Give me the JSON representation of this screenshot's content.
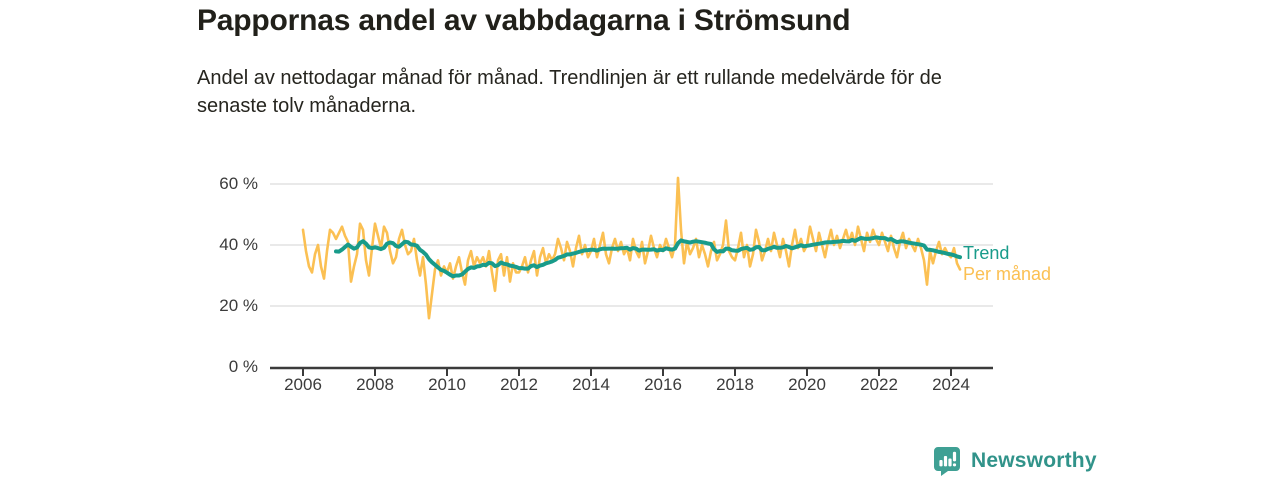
{
  "header": {
    "title": "Pappornas andel av vabbdagarna i Strömsund",
    "subtitle_line1": "Andel av nettodagar månad för månad. Trendlinjen är ett rullande medelvärde för de",
    "subtitle_line2": "senaste tolv månaderna."
  },
  "chart_data": {
    "type": "line",
    "title": "Pappornas andel av vabbdagarna i Strömsund",
    "x_start": "2006-01",
    "x_end": "2024-04",
    "ylim": [
      0,
      65
    ],
    "y_ticks": [
      "0 %",
      "20 %",
      "40 %",
      "60 %"
    ],
    "y_tick_values": [
      0,
      20,
      40,
      60
    ],
    "x_ticks": [
      "2006",
      "2008",
      "2010",
      "2012",
      "2014",
      "2016",
      "2018",
      "2020",
      "2022",
      "2024"
    ],
    "x_tick_values": [
      2006,
      2008,
      2010,
      2012,
      2014,
      2016,
      2018,
      2020,
      2022,
      2024
    ],
    "grid": "horizontal",
    "legend_position": "right-of-line-end",
    "series": [
      {
        "name": "Per månad",
        "color": "#FBC053",
        "unit": "%",
        "values": [
          45,
          38,
          33,
          31,
          37,
          40,
          33,
          29,
          38,
          45,
          44,
          42,
          44,
          46,
          43,
          41,
          28,
          33,
          37,
          47,
          45,
          35,
          30,
          39,
          47,
          43,
          39,
          46,
          44,
          38,
          34,
          36,
          42,
          45,
          40,
          37,
          38,
          42,
          35,
          30,
          36,
          27,
          16,
          24,
          32,
          35,
          30,
          33,
          31,
          34,
          29,
          33,
          36,
          31,
          27,
          35,
          38,
          33,
          36,
          34,
          36,
          33,
          38,
          31,
          25,
          35,
          37,
          30,
          36,
          28,
          34,
          31,
          31,
          33,
          36,
          31,
          35,
          38,
          30,
          36,
          39,
          34,
          37,
          35,
          37,
          42,
          39,
          35,
          41,
          38,
          33,
          39,
          43,
          37,
          40,
          36,
          38,
          42,
          36,
          40,
          44,
          37,
          34,
          39,
          42,
          38,
          41,
          37,
          39,
          35,
          42,
          38,
          36,
          41,
          34,
          38,
          43,
          39,
          36,
          40,
          38,
          42,
          39,
          36,
          40,
          62,
          45,
          34,
          41,
          37,
          39,
          42,
          36,
          40,
          37,
          33,
          38,
          41,
          35,
          37,
          40,
          48,
          38,
          36,
          35,
          39,
          44,
          36,
          40,
          33,
          37,
          45,
          41,
          35,
          38,
          42,
          38,
          44,
          40,
          36,
          42,
          38,
          33,
          40,
          45,
          39,
          42,
          38,
          40,
          46,
          42,
          38,
          44,
          40,
          36,
          41,
          45,
          40,
          43,
          39,
          42,
          45,
          41,
          44,
          40,
          46,
          42,
          38,
          44,
          41,
          45,
          42,
          40,
          44,
          41,
          38,
          43,
          39,
          36,
          41,
          44,
          39,
          42,
          40,
          38,
          42,
          39,
          35,
          27,
          38,
          34,
          38,
          41,
          37,
          39,
          37,
          36,
          39,
          34,
          32
        ]
      },
      {
        "name": "Trend",
        "color": "#189B8A",
        "unit": "%",
        "derived": "rolling_mean_of_per_manad",
        "window_months": 12
      }
    ]
  },
  "colors": {
    "monthly_line": "#FBC053",
    "trend_line": "#189B8A",
    "gridline": "#dcdcdc",
    "axis": "#3b3b3b",
    "brand_icon": "#3FA094",
    "brand_text": "#31938A"
  },
  "footer": {
    "brand": "Newsworthy"
  }
}
